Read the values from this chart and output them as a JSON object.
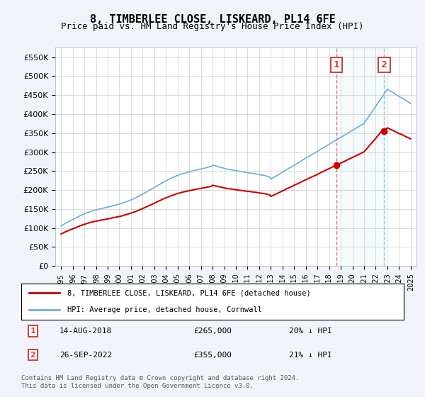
{
  "title": "8, TIMBERLEE CLOSE, LISKEARD, PL14 6FE",
  "subtitle": "Price paid vs. HM Land Registry's House Price Index (HPI)",
  "ylim": [
    0,
    575000
  ],
  "yticks": [
    0,
    50000,
    100000,
    150000,
    200000,
    250000,
    300000,
    350000,
    400000,
    450000,
    500000,
    550000
  ],
  "ytick_labels": [
    "£0",
    "£50K",
    "£100K",
    "£150K",
    "£200K",
    "£250K",
    "£300K",
    "£350K",
    "£400K",
    "£450K",
    "£500K",
    "£550K"
  ],
  "hpi_color": "#6aaed6",
  "price_color": "#cc0000",
  "marker1_date": 2018.62,
  "marker1_price": 265000,
  "marker1_label": "1",
  "marker2_date": 2022.73,
  "marker2_price": 355000,
  "marker2_label": "2",
  "annotation1": "14-AUG-2018    £265,000    20% ↓ HPI",
  "annotation2": "26-SEP-2022    £355,000    21% ↓ HPI",
  "legend_line1": "8, TIMBERLEE CLOSE, LISKEARD, PL14 6FE (detached house)",
  "legend_line2": "HPI: Average price, detached house, Cornwall",
  "footer": "Contains HM Land Registry data © Crown copyright and database right 2024.\nThis data is licensed under the Open Government Licence v3.0.",
  "background_color": "#f0f4fa",
  "plot_bg_color": "#ffffff",
  "grid_color": "#cccccc"
}
